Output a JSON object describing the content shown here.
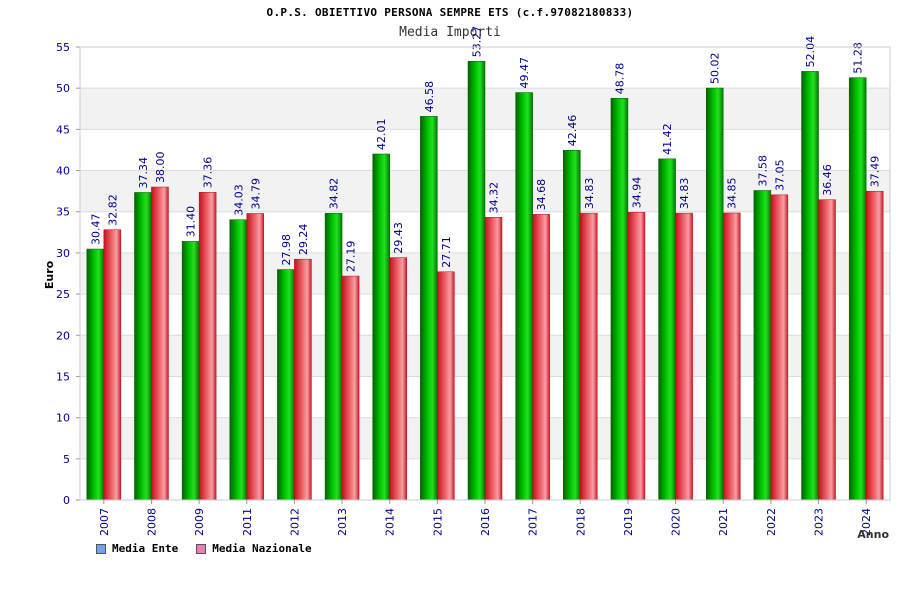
{
  "chart_data": {
    "type": "bar",
    "title": "O.P.S. OBIETTIVO PERSONA SEMPRE ETS (c.f.97082180833)",
    "subtitle": "Media Importi",
    "xlabel": "Anno",
    "ylabel": "Euro",
    "ylim": [
      0,
      55
    ],
    "yticks": [
      0,
      5,
      10,
      15,
      20,
      25,
      30,
      35,
      40,
      45,
      50,
      55
    ],
    "grid": true,
    "legend_position": "bottom-left",
    "categories": [
      "2007",
      "2008",
      "2009",
      "2011",
      "2012",
      "2013",
      "2014",
      "2015",
      "2016",
      "2017",
      "2018",
      "2019",
      "2020",
      "2021",
      "2022",
      "2023",
      "2024"
    ],
    "series": [
      {
        "name": "Media Ente",
        "legend_color": "#6aa6e8",
        "bar_color": "#00b400",
        "values": [
          30.47,
          37.34,
          31.4,
          34.03,
          27.98,
          34.82,
          42.01,
          46.58,
          53.27,
          49.47,
          42.46,
          48.78,
          41.42,
          50.02,
          37.58,
          52.04,
          51.28
        ],
        "labels": [
          "30.47",
          "37.34",
          "31.40",
          "34.03",
          "27.98",
          "34.82",
          "42.01",
          "46.58",
          "53.27",
          "49.47",
          "42.46",
          "48.78",
          "41.42",
          "50.02",
          "37.58",
          "52.04",
          "51.28"
        ]
      },
      {
        "name": "Media Nazionale",
        "legend_color": "#e87fb6",
        "bar_color": "#e8232e",
        "values": [
          32.82,
          38.0,
          37.36,
          34.79,
          29.24,
          27.19,
          29.43,
          27.71,
          34.32,
          34.68,
          34.83,
          34.94,
          34.83,
          34.85,
          37.05,
          36.46,
          37.49
        ],
        "labels": [
          "32.82",
          "38.00",
          "37.36",
          "34.79",
          "29.24",
          "27.19",
          "29.43",
          "27.71",
          "34.32",
          "34.68",
          "34.83",
          "34.94",
          "34.83",
          "34.85",
          "37.05",
          "36.46",
          "37.49"
        ]
      }
    ]
  }
}
